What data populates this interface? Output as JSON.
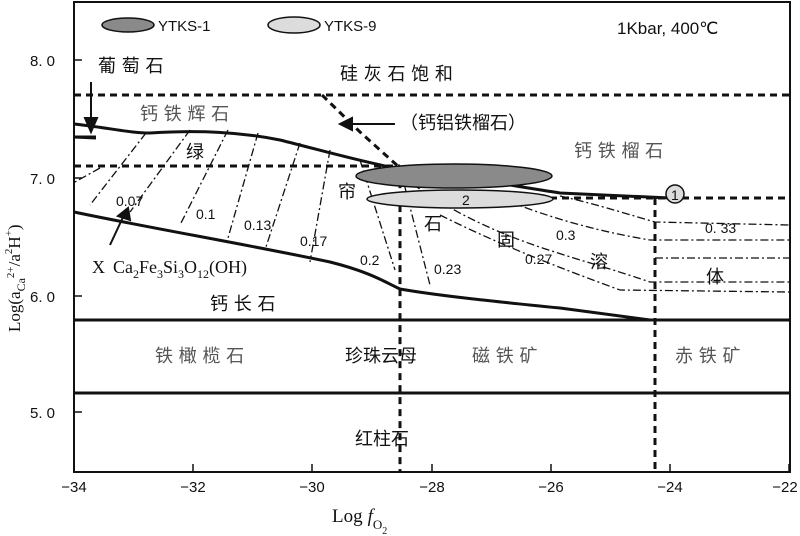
{
  "condition": "1Kbar, 400℃",
  "legend": {
    "samples": [
      "YTKS-1",
      "YTKS-9"
    ],
    "colors": [
      "#8a8a8a",
      "#dcdcdc"
    ]
  },
  "axes": {
    "y_label": "Log(a",
    "y_label_sub": "Ca",
    "y_label_sup": "2+",
    "y_label_mid": "/a",
    "y_label_sup2": "2",
    "y_label_h": "H",
    "y_label_sub2": "+",
    "y_label_end": ")",
    "y_ticks": [
      "8. 0",
      "7. 0",
      "6. 0",
      "5. 0"
    ],
    "x_label_main": "Log",
    "x_label_f": "f",
    "x_label_sub": "O",
    "x_label_sub2": "2",
    "x_ticks": [
      "−34",
      "−32",
      "−30",
      "−28",
      "−26",
      "−24",
      "−22"
    ]
  },
  "phases": {
    "grape": "葡  萄  石",
    "wollastonite": "硅  灰  石  饱  和",
    "hedenbergite": "钙  铁  辉  石",
    "grossular_bracket": "（钙铝铁榴石）",
    "andradite": "钙  铁  榴  石",
    "epidote": [
      "绿",
      "帘",
      "石",
      "固",
      "溶",
      "体"
    ],
    "formula_x": "X",
    "formula": "Ca",
    "formula_2": "2",
    "formula_fe": "Fe",
    "formula_3": "3",
    "formula_si": "Si",
    "formula_3b": "3",
    "formula_o": "O",
    "formula_12": "12",
    "formula_end": "(OH)",
    "anorthite": "钙  长  石",
    "fayalite": "铁  橄  榄  石",
    "margarite": "珍珠云母",
    "magnetite": "磁  铁  矿",
    "hematite": "赤  铁  矿",
    "andalusite": "红柱石"
  },
  "fractions": [
    "0.07",
    "0.1",
    "0.13",
    "0.17",
    "0.2",
    "0.23",
    "0.27",
    "0.3",
    "0. 33"
  ],
  "markers": [
    "1",
    "2"
  ]
}
